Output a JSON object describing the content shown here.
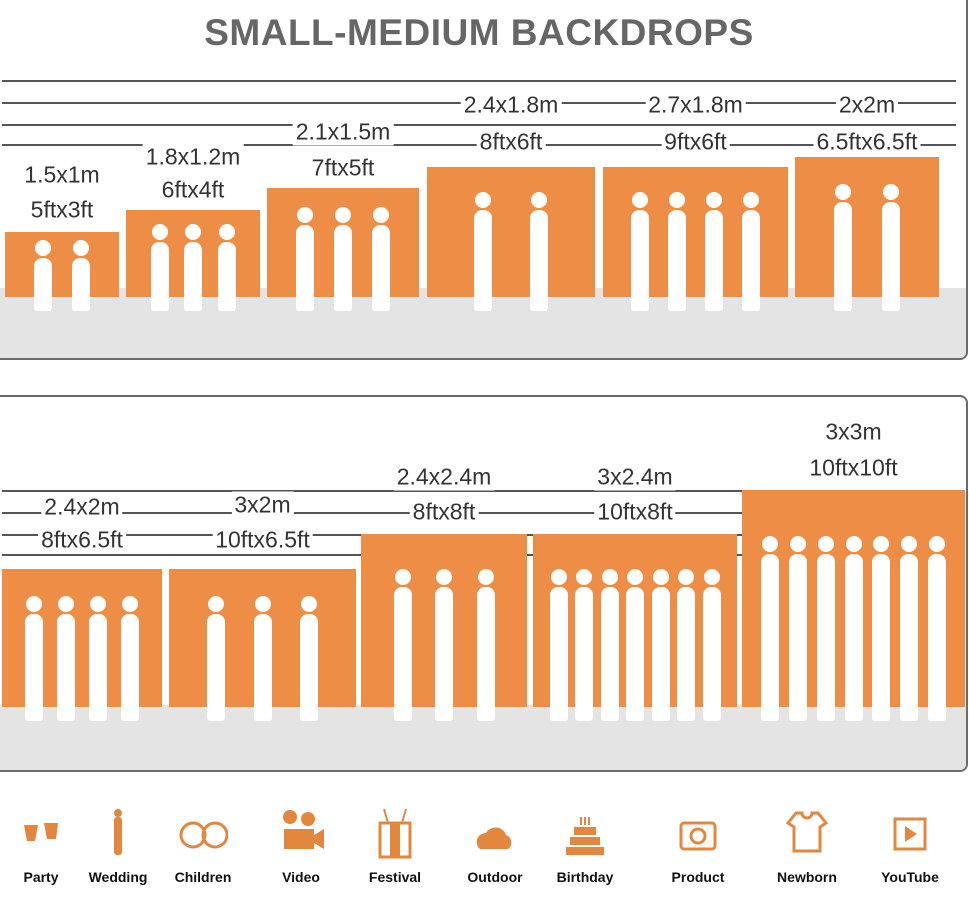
{
  "title": "SMALL-MEDIUM BACKDROPS",
  "accent": "#ee8d45",
  "top_sizes": [
    {
      "metric": "1.5x1m",
      "imperial": "5ftx3ft"
    },
    {
      "metric": "1.8x1.2m",
      "imperial": "6ftx4ft"
    },
    {
      "metric": "2.1x1.5m",
      "imperial": "7ftx5ft"
    },
    {
      "metric": "2.4x1.8m",
      "imperial": "8ftx6ft"
    },
    {
      "metric": "2.7x1.8m",
      "imperial": "9ftx6ft"
    },
    {
      "metric": "2x2m",
      "imperial": "6.5ftx6.5ft"
    }
  ],
  "bottom_sizes": [
    {
      "metric": "2.4x2m",
      "imperial": "8ftx6.5ft"
    },
    {
      "metric": "3x2m",
      "imperial": "10ftx6.5ft"
    },
    {
      "metric": "2.4x2.4m",
      "imperial": "8ftx8ft"
    },
    {
      "metric": "3x2.4m",
      "imperial": "10ftx8ft"
    },
    {
      "metric": "3x3m",
      "imperial": "10ftx10ft"
    }
  ],
  "uses": [
    {
      "label": "Party",
      "icon": "champagne-glasses-icon"
    },
    {
      "label": "Wedding",
      "icon": "couple-icon"
    },
    {
      "label": "Children",
      "icon": "children-faces-icon"
    },
    {
      "label": "Video",
      "icon": "movie-camera-icon"
    },
    {
      "label": "Festival",
      "icon": "gift-icon"
    },
    {
      "label": "Outdoor",
      "icon": "cloud-icon"
    },
    {
      "label": "Birthday",
      "icon": "cake-icon"
    },
    {
      "label": "Product",
      "icon": "camera-icon"
    },
    {
      "label": "Newborn",
      "icon": "onesie-icon"
    },
    {
      "label": "YouTube",
      "icon": "play-icon"
    }
  ]
}
